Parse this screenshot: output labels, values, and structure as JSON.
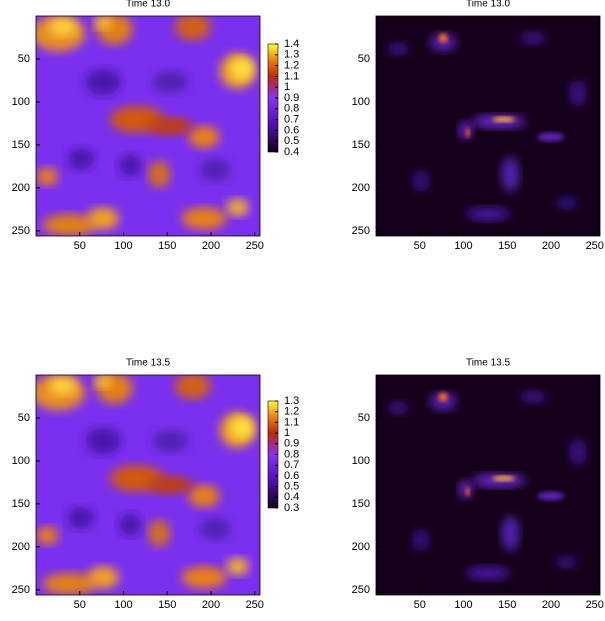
{
  "chart_data": [
    {
      "type": "heatmap",
      "title": "Time 13.0",
      "xlim": [
        0,
        256
      ],
      "xticks": [
        50,
        100,
        150,
        200,
        250
      ],
      "ylim": [
        0,
        256
      ],
      "yticks": [
        50,
        100,
        150,
        200,
        250
      ],
      "y_reversed": true,
      "colorbar_lim": [
        0.4,
        1.4
      ],
      "colorbar_ticks": [
        0.4,
        0.5,
        0.6,
        0.7,
        0.8,
        0.9,
        1,
        1.1,
        1.2,
        1.3,
        1.4
      ]
    },
    {
      "type": "heatmap",
      "title": "Time 13.0",
      "xlim": [
        0,
        256
      ],
      "xticks": [
        50,
        100,
        150,
        200,
        250
      ],
      "ylim": [
        0,
        256
      ],
      "yticks": [
        50,
        100,
        150,
        200,
        250
      ],
      "y_reversed": true
    },
    {
      "type": "heatmap",
      "title": "Time 13.5",
      "xlim": [
        0,
        256
      ],
      "xticks": [
        50,
        100,
        150,
        200,
        250
      ],
      "ylim": [
        0,
        256
      ],
      "yticks": [
        50,
        100,
        150,
        200,
        250
      ],
      "y_reversed": true,
      "colorbar_lim": [
        0.3,
        1.3
      ],
      "colorbar_ticks": [
        0.3,
        0.4,
        0.5,
        0.6,
        0.7,
        0.8,
        0.9,
        1,
        1.1,
        1.2,
        1.3
      ]
    },
    {
      "type": "heatmap",
      "title": "Time 13.5",
      "xlim": [
        0,
        256
      ],
      "xticks": [
        50,
        100,
        150,
        200,
        250
      ],
      "ylim": [
        0,
        256
      ],
      "yticks": [
        50,
        100,
        150,
        200,
        250
      ],
      "y_reversed": true
    }
  ]
}
